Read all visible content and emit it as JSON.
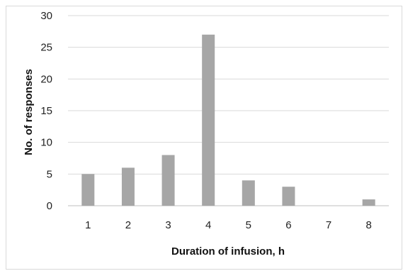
{
  "chart_data": {
    "type": "bar",
    "categories": [
      "1",
      "2",
      "3",
      "4",
      "5",
      "6",
      "7",
      "8"
    ],
    "values": [
      5,
      6,
      8,
      27,
      4,
      3,
      0,
      1
    ],
    "xlabel": "Duration of infusion, h",
    "ylabel": "No. of responses",
    "ylim": [
      0,
      30
    ],
    "yticks": [
      0,
      5,
      10,
      15,
      20,
      25,
      30
    ],
    "grid": true,
    "legend": "none",
    "colors": {
      "bar": "#a6a6a6",
      "grid": "#d9d9d9",
      "axis": "#bfbfbf"
    }
  }
}
